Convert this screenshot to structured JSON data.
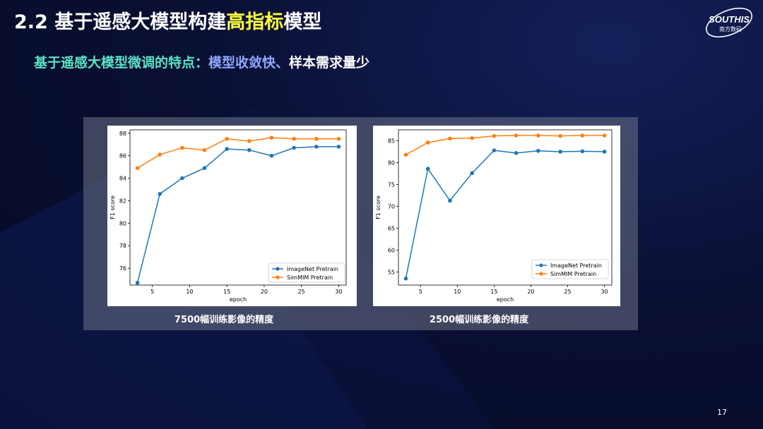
{
  "header": {
    "title_prefix": "2.2 基于遥感大模型构建",
    "title_highlight": "高指标",
    "title_suffix": "模型",
    "logo_text": "SOUTHIS",
    "logo_subtext": "南方数码"
  },
  "subtitle": {
    "part1": "基于遥感大模型微调的特点：",
    "part2": "模型收敛快、",
    "part3": "样本需求量少"
  },
  "captions": [
    "7500幅训练影像的精度",
    "2500幅训练影像的精度"
  ],
  "page_number": "17",
  "colors": {
    "imagenet": "#1f77b4",
    "simmim": "#ff7f0e",
    "highlight": "#ffff3c"
  },
  "chart_data": [
    {
      "type": "line",
      "title": "",
      "xlabel": "epoch",
      "ylabel": "F1 score",
      "x": [
        3,
        6,
        9,
        12,
        15,
        18,
        21,
        24,
        27,
        30
      ],
      "xlim": [
        2,
        31
      ],
      "ylim": [
        74.5,
        88.3
      ],
      "xticks": [
        "5",
        "10",
        "15",
        "20",
        "25",
        "30"
      ],
      "yticks": [
        "76",
        "78",
        "80",
        "82",
        "84",
        "86",
        "88"
      ],
      "legend_position": "lower-right",
      "grid": false,
      "series": [
        {
          "name": "ImageNet Pretrain",
          "values": [
            74.7,
            82.6,
            84.0,
            84.9,
            86.6,
            86.5,
            86.0,
            86.7,
            86.8,
            86.8
          ]
        },
        {
          "name": "SimMIM Pretrain",
          "values": [
            84.9,
            86.1,
            86.7,
            86.5,
            87.5,
            87.3,
            87.6,
            87.5,
            87.5,
            87.5
          ]
        }
      ]
    },
    {
      "type": "line",
      "title": "",
      "xlabel": "epoch",
      "ylabel": "F1 score",
      "x": [
        3,
        6,
        9,
        12,
        15,
        18,
        21,
        24,
        27,
        30
      ],
      "xlim": [
        2,
        31
      ],
      "ylim": [
        52,
        87.5
      ],
      "xticks": [
        "5",
        "10",
        "15",
        "20",
        "25",
        "30"
      ],
      "yticks": [
        "55",
        "60",
        "65",
        "70",
        "75",
        "80",
        "85"
      ],
      "legend_position": "lower-right",
      "grid": false,
      "series": [
        {
          "name": "ImageNet Pretrain",
          "values": [
            53.5,
            78.6,
            71.3,
            77.6,
            82.8,
            82.2,
            82.7,
            82.5,
            82.6,
            82.5
          ]
        },
        {
          "name": "SimMIM Pretrain",
          "values": [
            81.8,
            84.6,
            85.5,
            85.6,
            86.1,
            86.2,
            86.2,
            86.1,
            86.2,
            86.2
          ]
        }
      ]
    }
  ]
}
